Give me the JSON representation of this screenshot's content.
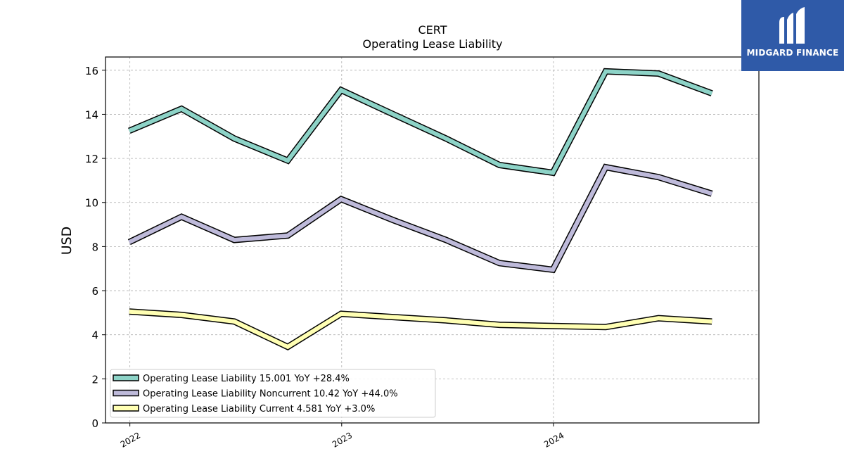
{
  "brand": {
    "name": "MIDGARD FINANCE",
    "color": "#2f5aa8"
  },
  "chart_data": {
    "type": "line",
    "title": "CERT",
    "subtitle": "Operating Lease Liability",
    "xlabel": "",
    "ylabel": "USD",
    "ylim": [
      0,
      16.6
    ],
    "yticks": [
      0,
      2,
      4,
      6,
      8,
      10,
      12,
      14,
      16
    ],
    "xticks": [
      "2022",
      "2023",
      "2024"
    ],
    "x": [
      "2021-12-31",
      "2022-03-31",
      "2022-06-30",
      "2022-09-30",
      "2022-12-31",
      "2023-03-31",
      "2023-06-30",
      "2023-09-30",
      "2023-12-31",
      "2024-03-31",
      "2024-06-30",
      "2024-09-30"
    ],
    "grid": true,
    "legend_position": "lower-left",
    "series": [
      {
        "name": "Operating Lease Liability  15.001 YoY +28.4%",
        "color": "#8dd3c7",
        "values": [
          13.25,
          14.25,
          12.9,
          11.9,
          15.1,
          14.0,
          12.9,
          11.7,
          11.35,
          15.95,
          15.85,
          14.95
        ]
      },
      {
        "name": "Operating Lease Liability Noncurrent  10.42 YoY +44.0%",
        "color": "#bebada",
        "values": [
          8.2,
          9.35,
          8.3,
          8.5,
          10.15,
          9.2,
          8.3,
          7.25,
          6.95,
          11.6,
          11.15,
          10.4
        ]
      },
      {
        "name": "Operating Lease Liability Current  4.581 YoY +3.0%",
        "color": "#ffffb3",
        "values": [
          5.05,
          4.9,
          4.6,
          3.45,
          4.95,
          4.8,
          4.65,
          4.45,
          4.4,
          4.35,
          4.75,
          4.6
        ]
      }
    ]
  }
}
